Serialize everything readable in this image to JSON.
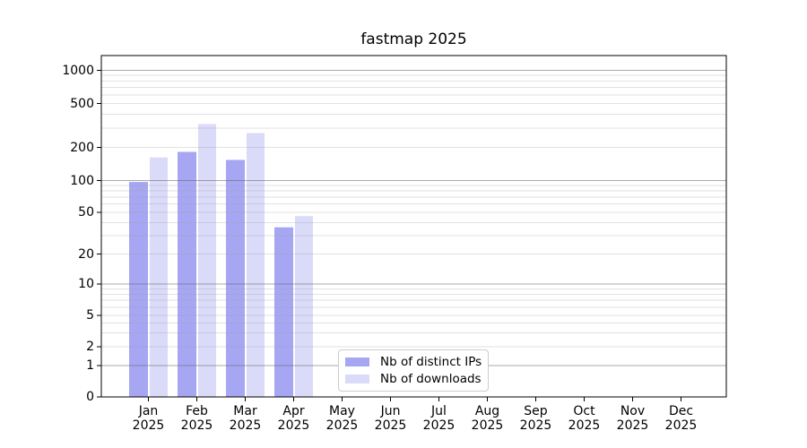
{
  "chart_data": {
    "type": "bar",
    "title": "fastmap 2025",
    "categories": [
      "Jan",
      "Feb",
      "Mar",
      "Apr",
      "May",
      "Jun",
      "Jul",
      "Aug",
      "Sep",
      "Oct",
      "Nov",
      "Dec"
    ],
    "x_tick_year": "2025",
    "series": [
      {
        "name": "Nb of distinct IPs",
        "color": "#a6a6f2",
        "values": [
          97,
          182,
          154,
          36,
          null,
          null,
          null,
          null,
          null,
          null,
          null,
          null
        ]
      },
      {
        "name": "Nb of downloads",
        "color": "#dadaf9",
        "values": [
          162,
          325,
          270,
          46,
          null,
          null,
          null,
          null,
          null,
          null,
          null,
          null
        ]
      }
    ],
    "y_ticks": [
      0,
      1,
      2,
      5,
      10,
      20,
      50,
      100,
      200,
      500,
      1000
    ],
    "y_scale": "asinh",
    "ylim": [
      0,
      1450
    ],
    "xlabel": "",
    "ylabel": "",
    "grid": true,
    "major_grid_values": [
      1,
      10,
      100,
      1000
    ],
    "minor_grid_base": [
      2,
      3,
      4,
      5,
      6,
      7,
      8,
      9
    ],
    "legend_position": "lower center",
    "colors": {
      "spine": "#000000",
      "major_grid": "#b3b3b3",
      "minor_grid": "#e7e7e7",
      "background": "#ffffff",
      "text": "#000000"
    }
  }
}
